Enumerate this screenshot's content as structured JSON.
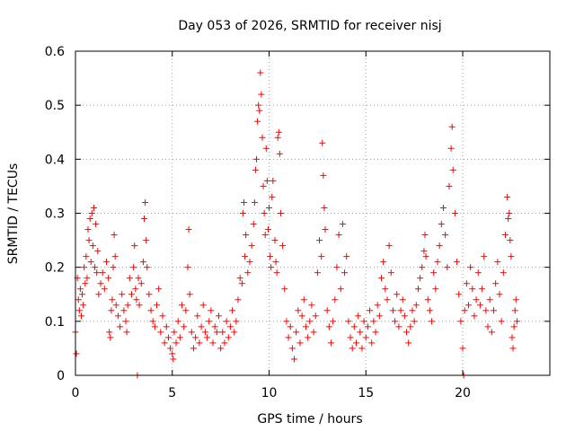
{
  "chart_data": {
    "type": "scatter",
    "title": "Day 053 of 2026, SRMTID for receiver nisj",
    "xlabel": "GPS time / hours",
    "ylabel": "SRMTID / TECUs",
    "xlim": [
      0,
      24.5
    ],
    "ylim": [
      0,
      0.6
    ],
    "xticks": [
      0,
      5,
      10,
      15,
      20
    ],
    "xtick_labels": [
      "0",
      "5",
      "10",
      "15",
      "20"
    ],
    "yticks": [
      0,
      0.1,
      0.2,
      0.3,
      0.4,
      0.5,
      0.6
    ],
    "ytick_labels": [
      "0",
      "0.1",
      "0.2",
      "0.3",
      "0.4",
      "0.5",
      "0.6"
    ],
    "grid": true,
    "marker": "+",
    "color": "#ff0000",
    "series": [
      {
        "name": "SRMTID",
        "points": [
          [
            0.0,
            0.08
          ],
          [
            0.05,
            0.04
          ],
          [
            0.1,
            0.18
          ],
          [
            0.15,
            0.14
          ],
          [
            0.2,
            0.12
          ],
          [
            0.25,
            0.16
          ],
          [
            0.3,
            0.11
          ],
          [
            0.35,
            0.15
          ],
          [
            0.4,
            0.13
          ],
          [
            0.45,
            0.2
          ],
          [
            0.5,
            0.17
          ],
          [
            0.55,
            0.22
          ],
          [
            0.6,
            0.18
          ],
          [
            0.65,
            0.27
          ],
          [
            0.7,
            0.25
          ],
          [
            0.75,
            0.29
          ],
          [
            0.8,
            0.21
          ],
          [
            0.85,
            0.3
          ],
          [
            0.9,
            0.24
          ],
          [
            0.95,
            0.31
          ],
          [
            1.0,
            0.2
          ],
          [
            1.05,
            0.28
          ],
          [
            1.1,
            0.19
          ],
          [
            1.15,
            0.23
          ],
          [
            1.2,
            0.15
          ],
          [
            1.3,
            0.17
          ],
          [
            1.4,
            0.19
          ],
          [
            1.5,
            0.16
          ],
          [
            1.6,
            0.21
          ],
          [
            1.7,
            0.18
          ],
          [
            1.75,
            0.08
          ],
          [
            1.8,
            0.07
          ],
          [
            1.85,
            0.12
          ],
          [
            1.9,
            0.14
          ],
          [
            1.95,
            0.2
          ],
          [
            2.0,
            0.26
          ],
          [
            2.05,
            0.22
          ],
          [
            2.1,
            0.13
          ],
          [
            2.2,
            0.11
          ],
          [
            2.3,
            0.09
          ],
          [
            2.4,
            0.15
          ],
          [
            2.5,
            0.12
          ],
          [
            2.6,
            0.1
          ],
          [
            2.65,
            0.08
          ],
          [
            2.7,
            0.13
          ],
          [
            2.8,
            0.18
          ],
          [
            2.9,
            0.15
          ],
          [
            3.0,
            0.2
          ],
          [
            3.05,
            0.24
          ],
          [
            3.1,
            0.16
          ],
          [
            3.15,
            0.14
          ],
          [
            3.2,
            0.0
          ],
          [
            3.25,
            0.18
          ],
          [
            3.3,
            0.13
          ],
          [
            3.4,
            0.17
          ],
          [
            3.5,
            0.21
          ],
          [
            3.55,
            0.29
          ],
          [
            3.6,
            0.32
          ],
          [
            3.65,
            0.25
          ],
          [
            3.7,
            0.2
          ],
          [
            3.8,
            0.15
          ],
          [
            3.9,
            0.12
          ],
          [
            4.0,
            0.1
          ],
          [
            4.1,
            0.09
          ],
          [
            4.2,
            0.13
          ],
          [
            4.3,
            0.16
          ],
          [
            4.4,
            0.08
          ],
          [
            4.5,
            0.11
          ],
          [
            4.6,
            0.06
          ],
          [
            4.7,
            0.09
          ],
          [
            4.8,
            0.07
          ],
          [
            4.9,
            0.05
          ],
          [
            5.0,
            0.04
          ],
          [
            5.05,
            0.03
          ],
          [
            5.1,
            0.08
          ],
          [
            5.2,
            0.06
          ],
          [
            5.3,
            0.1
          ],
          [
            5.4,
            0.07
          ],
          [
            5.5,
            0.13
          ],
          [
            5.6,
            0.09
          ],
          [
            5.7,
            0.12
          ],
          [
            5.8,
            0.2
          ],
          [
            5.85,
            0.27
          ],
          [
            5.9,
            0.15
          ],
          [
            6.0,
            0.08
          ],
          [
            6.1,
            0.05
          ],
          [
            6.2,
            0.07
          ],
          [
            6.3,
            0.11
          ],
          [
            6.4,
            0.06
          ],
          [
            6.5,
            0.09
          ],
          [
            6.6,
            0.13
          ],
          [
            6.7,
            0.08
          ],
          [
            6.8,
            0.07
          ],
          [
            6.9,
            0.1
          ],
          [
            7.0,
            0.12
          ],
          [
            7.1,
            0.06
          ],
          [
            7.2,
            0.09
          ],
          [
            7.3,
            0.08
          ],
          [
            7.4,
            0.11
          ],
          [
            7.5,
            0.05
          ],
          [
            7.6,
            0.08
          ],
          [
            7.7,
            0.06
          ],
          [
            7.8,
            0.1
          ],
          [
            7.9,
            0.07
          ],
          [
            8.0,
            0.09
          ],
          [
            8.1,
            0.12
          ],
          [
            8.2,
            0.08
          ],
          [
            8.3,
            0.1
          ],
          [
            8.4,
            0.14
          ],
          [
            8.5,
            0.18
          ],
          [
            8.6,
            0.17
          ],
          [
            8.65,
            0.3
          ],
          [
            8.7,
            0.32
          ],
          [
            8.75,
            0.22
          ],
          [
            8.8,
            0.26
          ],
          [
            8.9,
            0.19
          ],
          [
            9.0,
            0.21
          ],
          [
            9.1,
            0.24
          ],
          [
            9.2,
            0.28
          ],
          [
            9.25,
            0.32
          ],
          [
            9.3,
            0.38
          ],
          [
            9.35,
            0.4
          ],
          [
            9.4,
            0.47
          ],
          [
            9.45,
            0.5
          ],
          [
            9.5,
            0.49
          ],
          [
            9.55,
            0.56
          ],
          [
            9.6,
            0.52
          ],
          [
            9.65,
            0.44
          ],
          [
            9.7,
            0.35
          ],
          [
            9.75,
            0.3
          ],
          [
            9.8,
            0.26
          ],
          [
            9.85,
            0.42
          ],
          [
            9.9,
            0.36
          ],
          [
            9.95,
            0.27
          ],
          [
            10.0,
            0.31
          ],
          [
            10.05,
            0.22
          ],
          [
            10.1,
            0.2
          ],
          [
            10.15,
            0.33
          ],
          [
            10.2,
            0.36
          ],
          [
            10.3,
            0.25
          ],
          [
            10.35,
            0.21
          ],
          [
            10.4,
            0.19
          ],
          [
            10.45,
            0.44
          ],
          [
            10.5,
            0.45
          ],
          [
            10.55,
            0.41
          ],
          [
            10.6,
            0.3
          ],
          [
            10.7,
            0.24
          ],
          [
            10.8,
            0.16
          ],
          [
            10.9,
            0.1
          ],
          [
            11.0,
            0.07
          ],
          [
            11.1,
            0.09
          ],
          [
            11.2,
            0.05
          ],
          [
            11.3,
            0.03
          ],
          [
            11.4,
            0.08
          ],
          [
            11.5,
            0.12
          ],
          [
            11.6,
            0.06
          ],
          [
            11.7,
            0.11
          ],
          [
            11.8,
            0.14
          ],
          [
            11.9,
            0.09
          ],
          [
            12.0,
            0.07
          ],
          [
            12.1,
            0.1
          ],
          [
            12.2,
            0.13
          ],
          [
            12.3,
            0.08
          ],
          [
            12.4,
            0.11
          ],
          [
            12.5,
            0.19
          ],
          [
            12.6,
            0.25
          ],
          [
            12.7,
            0.22
          ],
          [
            12.75,
            0.43
          ],
          [
            12.8,
            0.37
          ],
          [
            12.85,
            0.31
          ],
          [
            12.9,
            0.27
          ],
          [
            13.0,
            0.12
          ],
          [
            13.1,
            0.09
          ],
          [
            13.2,
            0.06
          ],
          [
            13.3,
            0.1
          ],
          [
            13.4,
            0.14
          ],
          [
            13.5,
            0.2
          ],
          [
            13.6,
            0.26
          ],
          [
            13.7,
            0.16
          ],
          [
            13.8,
            0.28
          ],
          [
            13.9,
            0.19
          ],
          [
            14.0,
            0.22
          ],
          [
            14.1,
            0.1
          ],
          [
            14.2,
            0.07
          ],
          [
            14.3,
            0.05
          ],
          [
            14.4,
            0.09
          ],
          [
            14.5,
            0.06
          ],
          [
            14.6,
            0.11
          ],
          [
            14.7,
            0.08
          ],
          [
            14.8,
            0.05
          ],
          [
            14.9,
            0.1
          ],
          [
            15.0,
            0.07
          ],
          [
            15.1,
            0.09
          ],
          [
            15.2,
            0.12
          ],
          [
            15.3,
            0.06
          ],
          [
            15.4,
            0.1
          ],
          [
            15.5,
            0.08
          ],
          [
            15.6,
            0.13
          ],
          [
            15.7,
            0.11
          ],
          [
            15.8,
            0.18
          ],
          [
            15.9,
            0.21
          ],
          [
            16.0,
            0.16
          ],
          [
            16.1,
            0.14
          ],
          [
            16.2,
            0.24
          ],
          [
            16.3,
            0.19
          ],
          [
            16.4,
            0.12
          ],
          [
            16.5,
            0.1
          ],
          [
            16.6,
            0.15
          ],
          [
            16.7,
            0.09
          ],
          [
            16.8,
            0.12
          ],
          [
            16.9,
            0.14
          ],
          [
            17.0,
            0.11
          ],
          [
            17.1,
            0.08
          ],
          [
            17.2,
            0.06
          ],
          [
            17.3,
            0.09
          ],
          [
            17.4,
            0.12
          ],
          [
            17.5,
            0.1
          ],
          [
            17.6,
            0.13
          ],
          [
            17.7,
            0.16
          ],
          [
            17.8,
            0.18
          ],
          [
            17.9,
            0.2
          ],
          [
            18.0,
            0.23
          ],
          [
            18.05,
            0.26
          ],
          [
            18.1,
            0.22
          ],
          [
            18.2,
            0.14
          ],
          [
            18.3,
            0.12
          ],
          [
            18.4,
            0.1
          ],
          [
            18.5,
            0.19
          ],
          [
            18.6,
            0.16
          ],
          [
            18.7,
            0.21
          ],
          [
            18.8,
            0.24
          ],
          [
            18.9,
            0.28
          ],
          [
            19.0,
            0.31
          ],
          [
            19.1,
            0.26
          ],
          [
            19.2,
            0.2
          ],
          [
            19.3,
            0.35
          ],
          [
            19.4,
            0.42
          ],
          [
            19.45,
            0.46
          ],
          [
            19.5,
            0.38
          ],
          [
            19.6,
            0.3
          ],
          [
            19.7,
            0.21
          ],
          [
            19.8,
            0.15
          ],
          [
            19.9,
            0.1
          ],
          [
            20.0,
            0.05
          ],
          [
            20.05,
            0.0
          ],
          [
            20.1,
            0.12
          ],
          [
            20.2,
            0.17
          ],
          [
            20.3,
            0.13
          ],
          [
            20.4,
            0.2
          ],
          [
            20.5,
            0.16
          ],
          [
            20.6,
            0.11
          ],
          [
            20.7,
            0.14
          ],
          [
            20.8,
            0.19
          ],
          [
            20.9,
            0.13
          ],
          [
            21.0,
            0.16
          ],
          [
            21.1,
            0.22
          ],
          [
            21.2,
            0.12
          ],
          [
            21.3,
            0.09
          ],
          [
            21.4,
            0.14
          ],
          [
            21.5,
            0.08
          ],
          [
            21.6,
            0.12
          ],
          [
            21.7,
            0.17
          ],
          [
            21.8,
            0.21
          ],
          [
            21.9,
            0.15
          ],
          [
            22.0,
            0.1
          ],
          [
            22.1,
            0.19
          ],
          [
            22.2,
            0.26
          ],
          [
            22.3,
            0.33
          ],
          [
            22.35,
            0.29
          ],
          [
            22.4,
            0.3
          ],
          [
            22.45,
            0.25
          ],
          [
            22.5,
            0.22
          ],
          [
            22.55,
            0.07
          ],
          [
            22.6,
            0.05
          ],
          [
            22.65,
            0.09
          ],
          [
            22.7,
            0.12
          ],
          [
            22.75,
            0.14
          ],
          [
            22.8,
            0.1
          ]
        ]
      }
    ]
  }
}
